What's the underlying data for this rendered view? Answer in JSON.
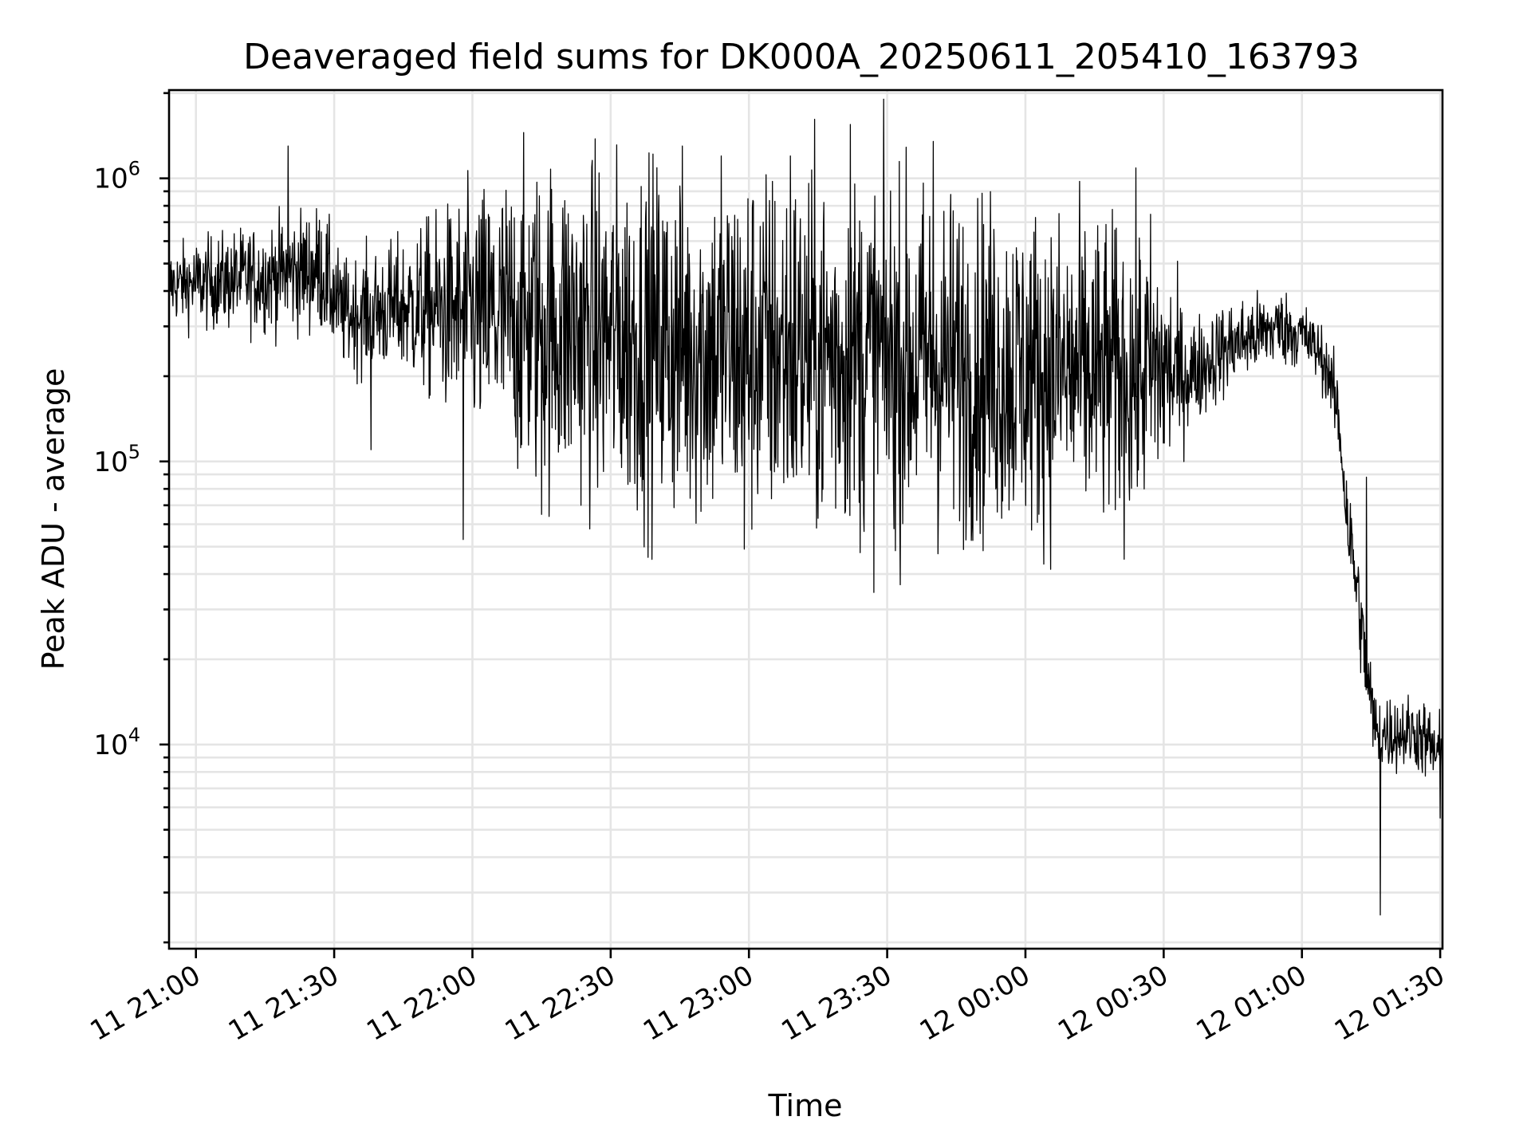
{
  "chart_data": {
    "type": "line",
    "title": "Deaveraged field sums for DK000A_20250611_205410_163793",
    "xlabel": "Time",
    "ylabel": "Peak ADU - average",
    "y_scale": "log",
    "ylim": [
      1900,
      2050000
    ],
    "xlim": [
      "2025-06-11 20:54:10",
      "2025-06-12 01:30:30"
    ],
    "x_ticks": [
      {
        "t": "2025-06-11 21:00",
        "label": "11 21:00"
      },
      {
        "t": "2025-06-11 21:30",
        "label": "11 21:30"
      },
      {
        "t": "2025-06-11 22:00",
        "label": "11 22:00"
      },
      {
        "t": "2025-06-11 22:30",
        "label": "11 22:30"
      },
      {
        "t": "2025-06-11 23:00",
        "label": "11 23:00"
      },
      {
        "t": "2025-06-11 23:30",
        "label": "11 23:30"
      },
      {
        "t": "2025-06-12 00:00",
        "label": "12 00:00"
      },
      {
        "t": "2025-06-12 00:30",
        "label": "12 00:30"
      },
      {
        "t": "2025-06-12 01:00",
        "label": "12 01:00"
      },
      {
        "t": "2025-06-12 01:30",
        "label": "12 01:30"
      }
    ],
    "y_ticks": [
      {
        "value": 10000,
        "base": "10",
        "exp": "4"
      },
      {
        "value": 100000,
        "base": "10",
        "exp": "5"
      },
      {
        "value": 1000000,
        "base": "10",
        "exp": "6"
      }
    ],
    "grid": true,
    "series": [
      {
        "color": "#000000",
        "profile": {
          "x": [
            "2025-06-11 20:54",
            "2025-06-11 21:05",
            "2025-06-11 21:15",
            "2025-06-11 21:27",
            "2025-06-11 21:32",
            "2025-06-11 21:45",
            "2025-06-11 21:55",
            "2025-06-11 22:05",
            "2025-06-11 22:15",
            "2025-06-11 22:30",
            "2025-06-11 22:45",
            "2025-06-11 23:00",
            "2025-06-11 23:15",
            "2025-06-11 23:30",
            "2025-06-11 23:45",
            "2025-06-12 00:00",
            "2025-06-12 00:15",
            "2025-06-12 00:28",
            "2025-06-12 00:35",
            "2025-06-12 00:45",
            "2025-06-12 00:55",
            "2025-06-12 01:00",
            "2025-06-12 01:04",
            "2025-06-12 01:06",
            "2025-06-12 01:08",
            "2025-06-12 01:10",
            "2025-06-12 01:12",
            "2025-06-12 01:14",
            "2025-06-12 01:16",
            "2025-06-12 01:20",
            "2025-06-12 01:25",
            "2025-06-12 01:30"
          ],
          "center": [
            420000,
            430000,
            450000,
            480000,
            330000,
            350000,
            340000,
            320000,
            300000,
            280000,
            260000,
            250000,
            240000,
            230000,
            220000,
            210000,
            200000,
            210000,
            200000,
            260000,
            300000,
            280000,
            240000,
            200000,
            140000,
            60000,
            35000,
            18000,
            11000,
            11000,
            11000,
            9000
          ],
          "spread": [
            0.12,
            0.15,
            0.17,
            0.2,
            0.17,
            0.22,
            0.33,
            0.44,
            0.52,
            0.55,
            0.57,
            0.58,
            0.58,
            0.57,
            0.55,
            0.52,
            0.5,
            0.45,
            0.18,
            0.14,
            0.12,
            0.11,
            0.1,
            0.1,
            0.14,
            0.16,
            0.16,
            0.15,
            0.13,
            0.12,
            0.12,
            0.14
          ]
        },
        "extremes": [
          {
            "t": "2025-06-11 21:20",
            "value": 1300000
          },
          {
            "t": "2025-06-11 22:54",
            "value": 1200000
          },
          {
            "t": "2025-06-11 23:09",
            "value": 1200000
          },
          {
            "t": "2025-06-11 23:22",
            "value": 1550000
          },
          {
            "t": "2025-06-11 23:40",
            "value": 1350000
          },
          {
            "t": "2025-06-11 22:59",
            "value": 49000
          },
          {
            "t": "2025-06-11 21:58",
            "value": 53000
          },
          {
            "t": "2025-06-11 21:38",
            "value": 110000
          },
          {
            "t": "2025-06-11 22:15",
            "value": 65000
          },
          {
            "t": "2025-06-12 01:14",
            "value": 88000
          },
          {
            "t": "2025-06-12 01:17",
            "value": 2500
          },
          {
            "t": "2025-06-12 01:30",
            "value": 5500
          }
        ]
      }
    ]
  }
}
